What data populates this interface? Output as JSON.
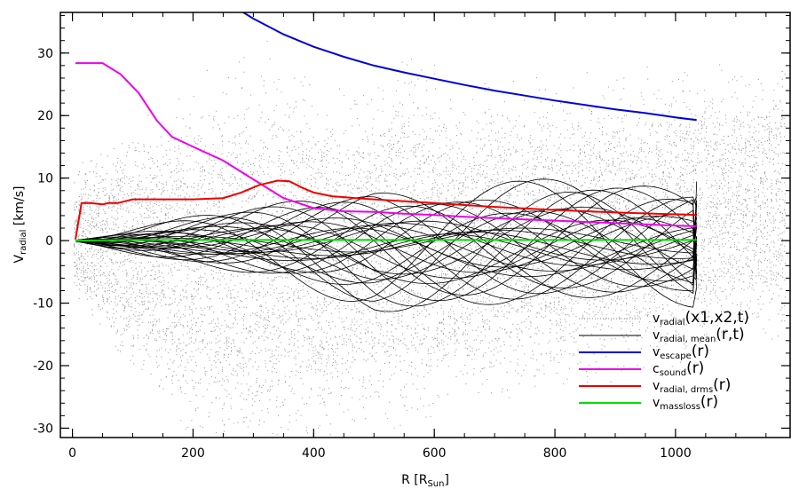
{
  "chart_data": {
    "type": "line",
    "title": "",
    "xlabel": {
      "main": "R  [R",
      "sub": "Sun",
      "end": "]"
    },
    "ylabel": {
      "main": "V",
      "sub": "radial",
      "end": "  [km/s]"
    },
    "xlim": [
      -20,
      1190
    ],
    "ylim": [
      -31.5,
      36.5
    ],
    "xticks": [
      0,
      200,
      400,
      600,
      800,
      1000
    ],
    "yticks": [
      -30,
      -20,
      -10,
      0,
      10,
      20,
      30
    ],
    "grid": false,
    "legend_position": "bottom-right",
    "colors": {
      "scatter": "#808080",
      "mean": "#000000",
      "escape": "#0000dd",
      "sound": "#ee00ee",
      "drms": "#ee0000",
      "massloss": "#00dd00"
    },
    "legend": [
      {
        "key": "scatter",
        "style": "dots",
        "main": "v",
        "sub": "radial",
        "args": "(x1,x2,t)"
      },
      {
        "key": "mean",
        "style": "line",
        "main": "v",
        "sub": "radial, mean",
        "args": "(r,t)"
      },
      {
        "key": "escape",
        "style": "line",
        "main": "v",
        "sub": "escape",
        "args": "(r)"
      },
      {
        "key": "sound",
        "style": "line",
        "main": "c",
        "sub": "sound",
        "args": "(r)"
      },
      {
        "key": "drms",
        "style": "line",
        "main": "v",
        "sub": "radial, drms",
        "args": "(r)"
      },
      {
        "key": "massloss",
        "style": "line",
        "main": "v",
        "sub": "massloss",
        "args": "(r)"
      }
    ],
    "series": [
      {
        "name": "v_escape(r)",
        "key": "escape",
        "x": [
          275,
          300,
          350,
          400,
          450,
          500,
          550,
          600,
          650,
          700,
          750,
          800,
          850,
          900,
          950,
          1000,
          1035
        ],
        "y": [
          37,
          35.5,
          33.0,
          31.0,
          29.4,
          28.0,
          26.9,
          25.9,
          24.9,
          24.0,
          23.2,
          22.4,
          21.7,
          21.0,
          20.4,
          19.7,
          19.3
        ]
      },
      {
        "name": "c_sound(r)",
        "key": "sound",
        "x": [
          5,
          50,
          80,
          110,
          140,
          165,
          200,
          250,
          300,
          350,
          400,
          450,
          500,
          550,
          600,
          650,
          700,
          750,
          800,
          850,
          900,
          950,
          1000,
          1035
        ],
        "y": [
          28.4,
          28.4,
          26.6,
          23.6,
          19.2,
          16.6,
          15.0,
          12.8,
          9.8,
          6.8,
          5.2,
          4.7,
          4.6,
          4.3,
          4.1,
          3.8,
          3.6,
          3.4,
          3.2,
          3.0,
          2.8,
          2.6,
          2.4,
          2.3
        ]
      },
      {
        "name": "v_radial,drms(r)",
        "key": "drms",
        "x": [
          5,
          15,
          30,
          50,
          60,
          75,
          100,
          150,
          200,
          250,
          280,
          310,
          340,
          360,
          380,
          400,
          430,
          470,
          500,
          550,
          600,
          650,
          700,
          800,
          900,
          1000,
          1035
        ],
        "y": [
          0.2,
          6.0,
          6.0,
          5.8,
          6.0,
          6.0,
          6.6,
          6.6,
          6.6,
          6.8,
          7.7,
          8.9,
          9.6,
          9.5,
          8.5,
          7.7,
          7.1,
          6.8,
          6.6,
          6.3,
          6.0,
          5.7,
          5.4,
          4.9,
          4.5,
          4.2,
          4.1
        ]
      },
      {
        "name": "v_massloss(r)",
        "key": "massloss",
        "x": [
          5,
          100,
          200,
          300,
          400,
          500,
          600,
          700,
          800,
          900,
          1000,
          1035
        ],
        "y": [
          0,
          0.1,
          0.1,
          0.1,
          0.1,
          0.1,
          0.1,
          0.1,
          0.1,
          0.1,
          0.1,
          0.1
        ]
      },
      {
        "name": "v_radial,mean(r,t)",
        "key": "mean",
        "note": "ensemble of ~30 time-snapshot profiles spanning roughly -12 to 14 km/s, rendered procedurally"
      },
      {
        "name": "v_radial(x1,x2,t)",
        "key": "scatter",
        "note": "dense grey point cloud spanning x 0-1180 and y about -28 to 22 km/s, rendered procedurally"
      }
    ]
  }
}
